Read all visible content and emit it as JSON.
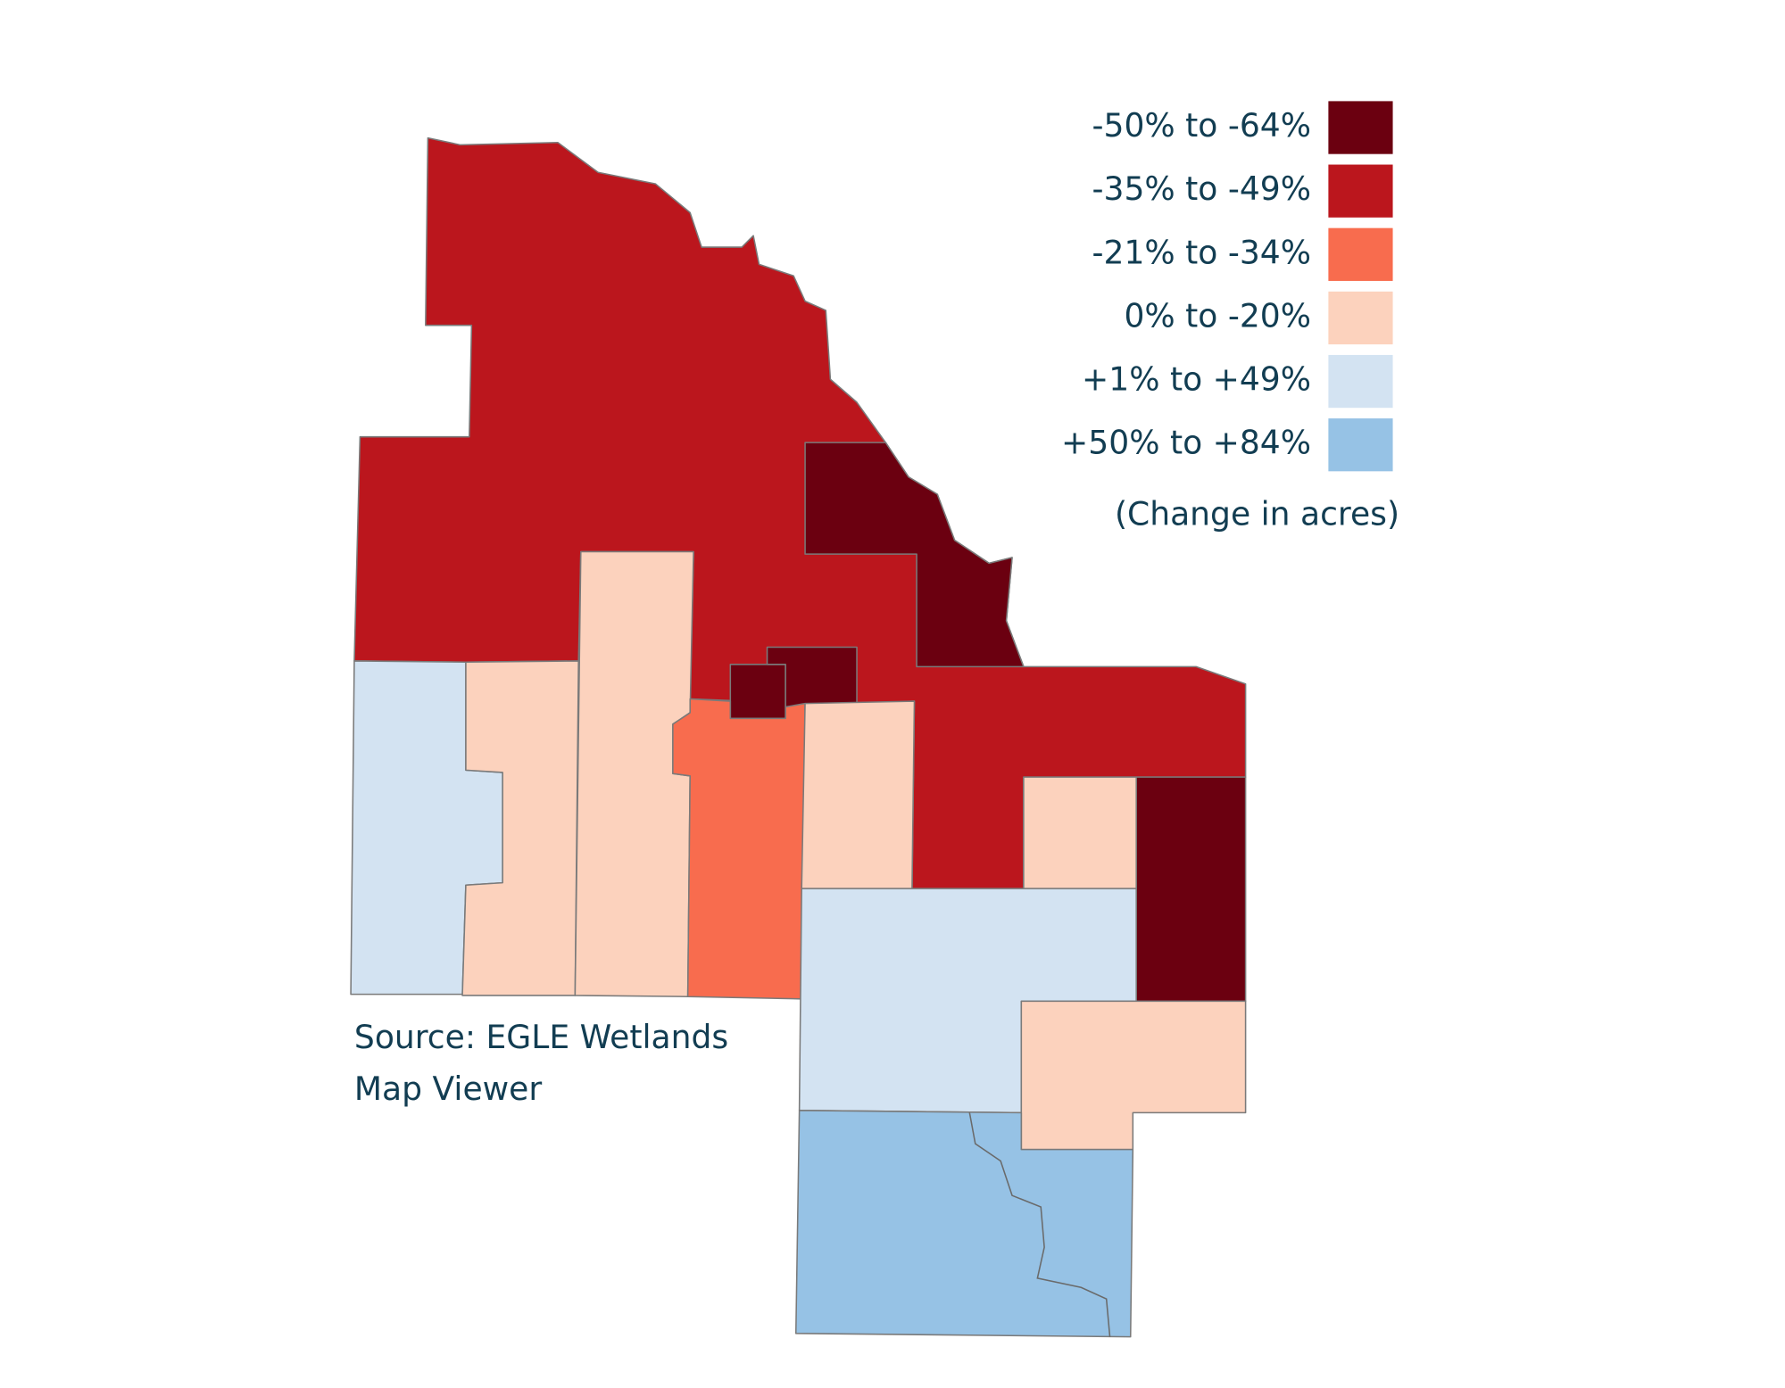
{
  "legend": {
    "items": [
      {
        "label": "-50% to -64%",
        "color": "#6b0010"
      },
      {
        "label": "-35% to -49%",
        "color": "#bb161d"
      },
      {
        "label": "-21% to -34%",
        "color": "#f86c4e"
      },
      {
        "label": "0% to -20%",
        "color": "#fcd2bd"
      },
      {
        "label": "+1% to +49%",
        "color": "#d3e3f2"
      },
      {
        "label": "+50% to +84%",
        "color": "#96c2e5"
      }
    ],
    "note": "(Change in acres)"
  },
  "source": [
    "Source: EGLE Wetlands",
    "Map Viewer"
  ]
}
